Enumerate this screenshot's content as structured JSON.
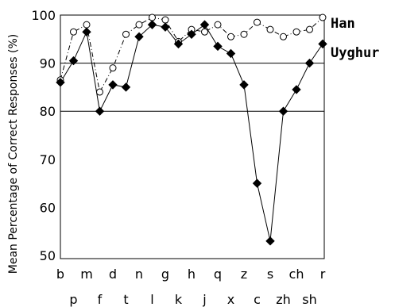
{
  "chart_data": {
    "type": "line",
    "ylabel": "Mean Percentage of Correct Responses (%)",
    "xlabel": "",
    "ylim": [
      50,
      100
    ],
    "yticks": [
      50,
      60,
      70,
      80,
      90,
      100
    ],
    "grid": "horizontal lines at 80, 90 and 100",
    "legend_placement": "right, at the end of each line",
    "categories": [
      "b",
      "p",
      "m",
      "f",
      "d",
      "t",
      "n",
      "l",
      "g",
      "k",
      "h",
      "j",
      "q",
      "x",
      "z",
      "c",
      "s",
      "zh",
      "ch",
      "sh",
      "r"
    ],
    "series": [
      {
        "name": "Han",
        "marker": "open-circle",
        "line_style": "dash-dot",
        "color": "#000000",
        "values": [
          86.5,
          96.5,
          98.0,
          84.0,
          89.0,
          96.0,
          98.0,
          99.5,
          99.0,
          94.5,
          97.0,
          96.5,
          98.0,
          95.5,
          96.0,
          98.5,
          97.0,
          95.5,
          96.5,
          97.0,
          99.5
        ]
      },
      {
        "name": "Uyghur",
        "marker": "filled-diamond",
        "line_style": "solid",
        "color": "#000000",
        "values": [
          86.0,
          90.5,
          96.5,
          80.0,
          85.5,
          85.0,
          95.5,
          98.0,
          97.5,
          94.0,
          96.0,
          98.0,
          93.5,
          92.0,
          85.5,
          65.0,
          53.0,
          80.0,
          84.5,
          90.0,
          94.0
        ]
      }
    ]
  }
}
